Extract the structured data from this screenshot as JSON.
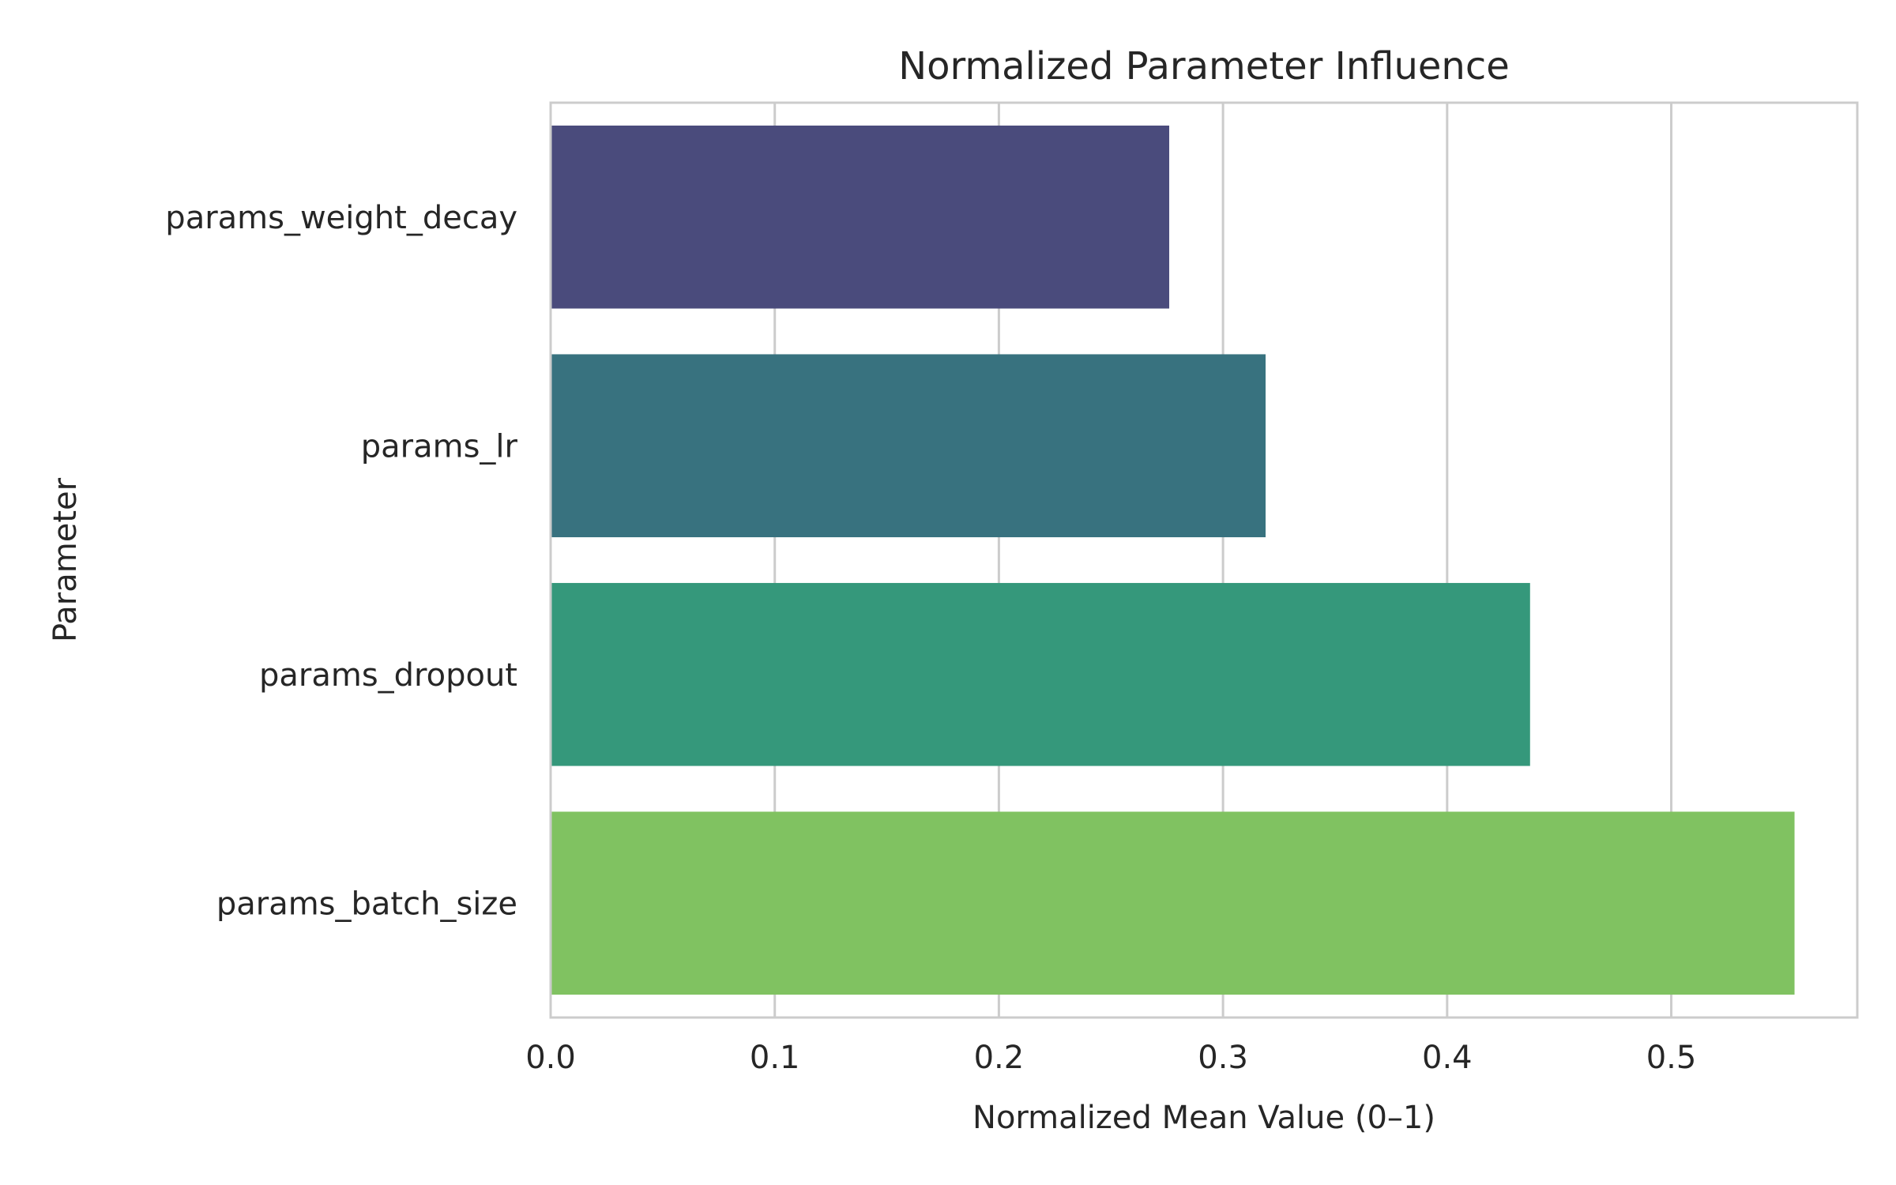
{
  "chart_data": {
    "type": "bar",
    "orientation": "horizontal",
    "title": "Normalized Parameter Influence",
    "xlabel": "Normalized Mean Value (0–1)",
    "ylabel": "Parameter",
    "categories": [
      "params_weight_decay",
      "params_lr",
      "params_dropout",
      "params_batch_size"
    ],
    "values": [
      0.276,
      0.319,
      0.437,
      0.555
    ],
    "colors": [
      "#4a4b7c",
      "#38727f",
      "#35987b",
      "#80c261"
    ],
    "xlim": [
      0,
      0.583
    ],
    "xticks": [
      "0.0",
      "0.1",
      "0.2",
      "0.3",
      "0.4",
      "0.5"
    ],
    "grid": true,
    "legend": "none"
  }
}
